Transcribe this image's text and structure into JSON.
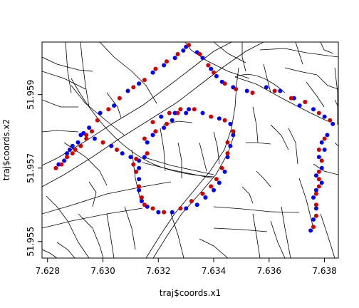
{
  "chart_data": {
    "type": "scatter",
    "xlabel": "traj$coords.x1",
    "ylabel": "traj$coords.x2",
    "xlim": [
      7.6278,
      7.6385
    ],
    "ylim": [
      51.95455,
      51.96043
    ],
    "x_ticks": [
      "7.628",
      "7.630",
      "7.632",
      "7.634",
      "7.636",
      "7.638"
    ],
    "y_ticks": [
      "51.955",
      "51.957",
      "51.959"
    ],
    "colors": {
      "blue": "#0000ff",
      "red": "#cc0000",
      "road": "#000000"
    },
    "series": [
      {
        "color": "blue",
        "points": [
          [
            7.6284,
            51.9571
          ],
          [
            7.6286,
            51.9572
          ],
          [
            7.6287,
            51.9574
          ],
          [
            7.6288,
            51.9575
          ],
          [
            7.6289,
            51.9576
          ],
          [
            7.6291,
            51.9577
          ],
          [
            7.6292,
            51.9579
          ],
          [
            7.6293,
            51.95795
          ],
          [
            7.6295,
            51.9581
          ],
          [
            7.6299,
            51.9585
          ],
          [
            7.6304,
            51.9587
          ],
          [
            7.6309,
            51.9591
          ],
          [
            7.6313,
            51.9593
          ],
          [
            7.6318,
            51.9596
          ],
          [
            7.6322,
            51.9598
          ],
          [
            7.6326,
            51.96
          ],
          [
            7.6329,
            51.9602
          ],
          [
            7.633,
            51.9603
          ],
          [
            7.6334,
            51.96015
          ],
          [
            7.6336,
            51.96
          ],
          [
            7.6339,
            51.9597
          ],
          [
            7.6341,
            51.9595
          ],
          [
            7.6343,
            51.95935
          ],
          [
            7.6347,
            51.9592
          ],
          [
            7.6352,
            51.9591
          ],
          [
            7.6359,
            51.9592
          ],
          [
            7.6364,
            51.9591
          ],
          [
            7.6369,
            51.9589
          ],
          [
            7.6371,
            51.9587
          ],
          [
            7.6376,
            51.9586
          ],
          [
            7.638,
            51.9584
          ],
          [
            7.6383,
            51.9582
          ],
          [
            7.6381,
            51.9579
          ],
          [
            7.6379,
            51.9577
          ],
          [
            7.638,
            51.9575
          ],
          [
            7.6378,
            51.9573
          ],
          [
            7.6379,
            51.957
          ],
          [
            7.6377,
            51.9568
          ],
          [
            7.6379,
            51.9566
          ],
          [
            7.6377,
            51.9564
          ],
          [
            7.6376,
            51.9562
          ],
          [
            7.6377,
            51.9559
          ],
          [
            7.6376,
            51.9556
          ],
          [
            7.6375,
            51.9553
          ],
          [
            7.633,
            51.9585
          ],
          [
            7.6325,
            51.9583
          ],
          [
            7.6322,
            51.9581
          ],
          [
            7.6318,
            51.9579
          ],
          [
            7.6316,
            51.9577
          ],
          [
            7.6321,
            51.9584
          ],
          [
            7.6326,
            51.9585
          ],
          [
            7.6331,
            51.9586
          ],
          [
            7.6336,
            51.9585
          ],
          [
            7.6342,
            51.95835
          ],
          [
            7.6346,
            51.9582
          ],
          [
            7.6347,
            51.9579
          ],
          [
            7.6346,
            51.9576
          ],
          [
            7.6345,
            51.9573
          ],
          [
            7.6344,
            51.9569
          ],
          [
            7.6342,
            51.9566
          ],
          [
            7.634,
            51.9564
          ],
          [
            7.6337,
            51.9562
          ],
          [
            7.6334,
            51.956
          ],
          [
            7.633,
            51.9559
          ],
          [
            7.6325,
            51.9558
          ],
          [
            7.632,
            51.9558
          ],
          [
            7.6316,
            51.95595
          ],
          [
            7.6314,
            51.9561
          ],
          [
            7.6313,
            51.9564
          ],
          [
            7.6313,
            51.9567
          ],
          [
            7.6313,
            51.957
          ],
          [
            7.6313,
            51.9572
          ],
          [
            7.6307,
            51.9574
          ],
          [
            7.6303,
            51.9576
          ],
          [
            7.6297,
            51.9578
          ],
          [
            7.631,
            51.9573
          ],
          [
            7.6315,
            51.9573
          ]
        ]
      },
      {
        "color": "red",
        "points": [
          [
            7.6283,
            51.957
          ],
          [
            7.6285,
            51.9571
          ],
          [
            7.6287,
            51.9573
          ],
          [
            7.6289,
            51.9574
          ],
          [
            7.629,
            51.9575
          ],
          [
            7.6292,
            51.9576
          ],
          [
            7.6294,
            51.9578
          ],
          [
            7.6296,
            51.958
          ],
          [
            7.6298,
            51.9583
          ],
          [
            7.6302,
            51.9586
          ],
          [
            7.6306,
            51.9589
          ],
          [
            7.6311,
            51.9592
          ],
          [
            7.6315,
            51.9594
          ],
          [
            7.6319,
            51.9597
          ],
          [
            7.6323,
            51.9599
          ],
          [
            7.6327,
            51.9601
          ],
          [
            7.6331,
            51.96035
          ],
          [
            7.6335,
            51.9601
          ],
          [
            7.6338,
            51.9598
          ],
          [
            7.634,
            51.9596
          ],
          [
            7.6344,
            51.9593
          ],
          [
            7.6348,
            51.95915
          ],
          [
            7.6354,
            51.95905
          ],
          [
            7.6362,
            51.9591
          ],
          [
            7.6368,
            51.9589
          ],
          [
            7.6373,
            51.9588
          ],
          [
            7.6378,
            51.9585
          ],
          [
            7.6382,
            51.9583
          ],
          [
            7.638,
            51.9578
          ],
          [
            7.6378,
            51.9575
          ],
          [
            7.6379,
            51.9572
          ],
          [
            7.6378,
            51.9569
          ],
          [
            7.6378,
            51.9567
          ],
          [
            7.6378,
            51.9565
          ],
          [
            7.6377,
            51.9563
          ],
          [
            7.6377,
            51.956
          ],
          [
            7.6377,
            51.9557
          ],
          [
            7.6376,
            51.9554
          ],
          [
            7.6327,
            51.9585
          ],
          [
            7.6323,
            51.9582
          ],
          [
            7.6319,
            51.958
          ],
          [
            7.6315,
            51.9578
          ],
          [
            7.6318,
            51.95825
          ],
          [
            7.6324,
            51.9585
          ],
          [
            7.6328,
            51.9586
          ],
          [
            7.6333,
            51.9586
          ],
          [
            7.6339,
            51.9584
          ],
          [
            7.6344,
            51.9583
          ],
          [
            7.6347,
            51.958
          ],
          [
            7.6345,
            51.9577
          ],
          [
            7.6345,
            51.9574
          ],
          [
            7.6343,
            51.957
          ],
          [
            7.6341,
            51.9567
          ],
          [
            7.6339,
            51.9565
          ],
          [
            7.6336,
            51.9563
          ],
          [
            7.6332,
            51.9561
          ],
          [
            7.6328,
            51.9559
          ],
          [
            7.6322,
            51.9558
          ],
          [
            7.6318,
            51.9559
          ],
          [
            7.6315,
            51.956
          ],
          [
            7.6314,
            51.9562
          ],
          [
            7.6313,
            51.9565
          ],
          [
            7.6312,
            51.9569
          ],
          [
            7.6311,
            51.9571
          ],
          [
            7.6305,
            51.9575
          ],
          [
            7.63,
            51.9577
          ],
          [
            7.6294,
            51.9579
          ],
          [
            7.6312,
            51.95725
          ],
          [
            7.6316,
            51.9574
          ]
        ]
      }
    ]
  }
}
